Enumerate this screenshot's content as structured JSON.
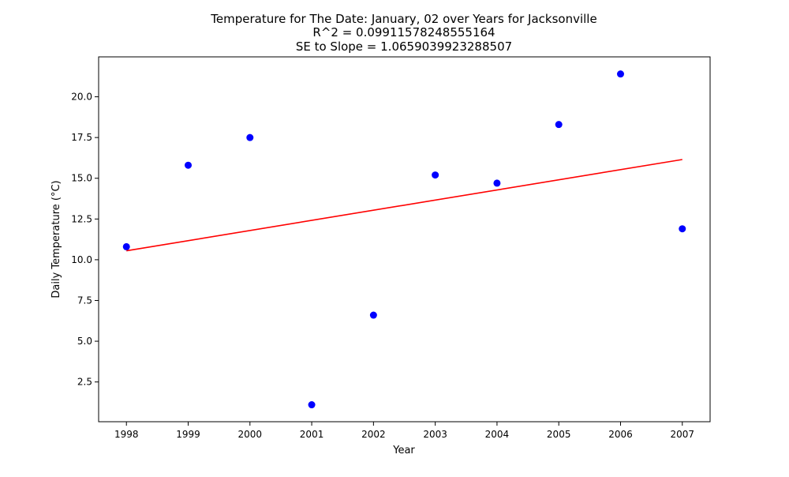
{
  "chart_data": {
    "type": "scatter",
    "title_lines": [
      "Temperature for The Date: January, 02 over Years for Jacksonville",
      "R^2 = 0.09911578248555164",
      "SE to Slope = 1.0659039923288507"
    ],
    "xlabel": "Year",
    "ylabel": "Daily Temperature (°C)",
    "xlim": [
      1997.55,
      2007.45
    ],
    "ylim": [
      0.06,
      22.45
    ],
    "x_ticks": [
      1998,
      1999,
      2000,
      2001,
      2002,
      2003,
      2004,
      2005,
      2006,
      2007
    ],
    "x_tick_labels": [
      "1998",
      "1999",
      "2000",
      "2001",
      "2002",
      "2003",
      "2004",
      "2005",
      "2006",
      "2007"
    ],
    "y_ticks": [
      2.5,
      5.0,
      7.5,
      10.0,
      12.5,
      15.0,
      17.5,
      20.0
    ],
    "y_tick_labels": [
      "2.5",
      "5.0",
      "7.5",
      "10.0",
      "12.5",
      "15.0",
      "17.5",
      "20.0"
    ],
    "grid": false,
    "series": [
      {
        "kind": "scatter",
        "color": "#0000ff",
        "x": [
          1998,
          1999,
          2000,
          2001,
          2002,
          2003,
          2004,
          2005,
          2006,
          2007
        ],
        "y": [
          10.8,
          15.8,
          17.5,
          1.1,
          6.6,
          15.2,
          14.7,
          18.3,
          21.4,
          11.9
        ]
      },
      {
        "kind": "line",
        "color": "#ff0000",
        "x": [
          1998,
          2007
        ],
        "y": [
          10.55,
          16.15
        ]
      }
    ]
  }
}
